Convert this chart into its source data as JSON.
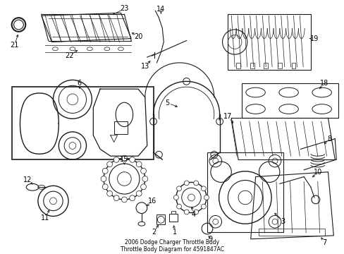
{
  "title": "2006 Dodge Charger Throttle Body\nThrottle Body Diagram for 4591847AC",
  "background_color": "#ffffff",
  "line_color": "#1a1a1a",
  "text_color": "#000000",
  "label_fontsize": 7.0,
  "fig_width": 4.89,
  "fig_height": 3.6,
  "dpi": 100
}
